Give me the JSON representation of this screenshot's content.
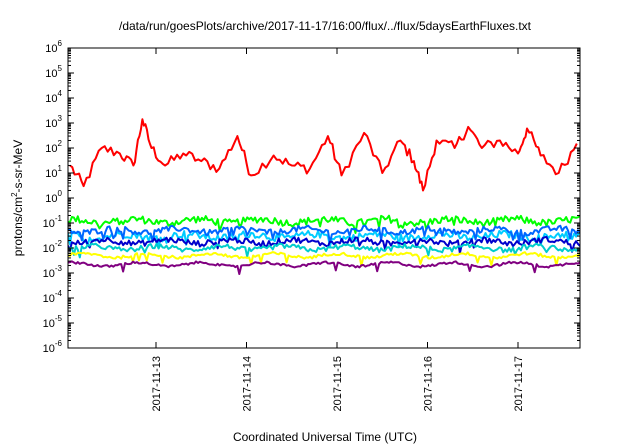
{
  "chart_data": {
    "type": "line",
    "title": "/data/run/goesPlots/archive/2017-11-17/16:00/flux/../flux/5daysEarthFluxes.txt",
    "xlabel": "Coordinated Universal Time (UTC)",
    "ylabel": "protons/cm²-s-sr-MeV",
    "ylabel_parts": {
      "pre": "protons/cm",
      "sup": "2",
      "post": "-s-sr-MeV"
    },
    "yscale": "log",
    "ylim": [
      1e-06,
      1000000.0
    ],
    "y_tick_base": "10",
    "y_tick_exponents": [
      "6",
      "5",
      "4",
      "3",
      "2",
      "1",
      "0",
      "-1",
      "-2",
      "-3",
      "-4",
      "-5",
      "-6"
    ],
    "xlim": [
      "2017-11-12 01:00",
      "2017-11-17 18:00"
    ],
    "x_ticks": [
      "2017-11-13",
      "2017-11-14",
      "2017-11-15",
      "2017-11-16",
      "2017-11-17"
    ],
    "x_tick_days": [
      1,
      2,
      3,
      4,
      5
    ],
    "grid": false,
    "legend": "none",
    "series": [
      {
        "color": "#ff0000",
        "base": 25,
        "spread": 0.45,
        "spikes": [
          [
            0.85,
            1400
          ],
          [
            0.09,
            3
          ],
          [
            3.95,
            2
          ],
          [
            4.45,
            700
          ],
          [
            5.1,
            600
          ]
        ],
        "x_days": [
          0.05,
          0.2,
          0.4,
          0.6,
          0.75,
          0.85,
          0.95,
          1.1,
          1.3,
          1.5,
          1.7,
          1.9,
          2.05,
          2.3,
          2.5,
          2.7,
          2.9,
          3.05,
          3.3,
          3.5,
          3.7,
          3.85,
          3.95,
          4.1,
          4.3,
          4.45,
          4.6,
          4.8,
          5.0,
          5.1,
          5.25,
          5.45,
          5.65
        ],
        "y_values": [
          20,
          3,
          100,
          60,
          20,
          1400,
          100,
          20,
          60,
          30,
          15,
          300,
          8,
          50,
          20,
          15,
          300,
          8,
          400,
          10,
          200,
          30,
          2,
          200,
          100,
          700,
          100,
          200,
          60,
          600,
          50,
          10,
          150
        ]
      },
      {
        "color": "#00ff00",
        "base": 0.12,
        "spread": 0.15
      },
      {
        "color": "#00ccff",
        "base": 0.03,
        "spread": 0.15
      },
      {
        "color": "#0066ff",
        "base": 0.05,
        "spread": 0.12
      },
      {
        "color": "#0000cc",
        "base": 0.018,
        "spread": 0.12
      },
      {
        "color": "#00cccc",
        "base": 0.01,
        "spread": 0.1
      },
      {
        "color": "#ffff00",
        "base": 0.005,
        "spread": 0.06
      },
      {
        "color": "#800080",
        "base": 0.0022,
        "spread": 0.05
      }
    ]
  }
}
